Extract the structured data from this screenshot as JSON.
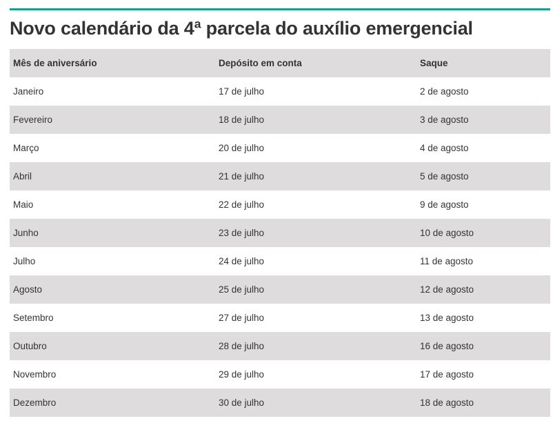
{
  "title": "Novo calendário da 4ª parcela do auxílio emergencial",
  "colors": {
    "accent_rule": "#17a088",
    "row_shade": "#dedcdd",
    "text": "#333333"
  },
  "table": {
    "headers": [
      "Mês de aniversário",
      "Depósito em conta",
      "Saque"
    ],
    "rows": [
      [
        "Janeiro",
        "17 de julho",
        "2 de agosto"
      ],
      [
        "Fevereiro",
        "18 de julho",
        "3 de agosto"
      ],
      [
        "Março",
        "20 de julho",
        "4 de agosto"
      ],
      [
        "Abril",
        "21 de julho",
        "5 de agosto"
      ],
      [
        "Maio",
        "22 de julho",
        "9 de agosto"
      ],
      [
        "Junho",
        "23 de julho",
        "10 de agosto"
      ],
      [
        "Julho",
        "24 de julho",
        "11 de agosto"
      ],
      [
        "Agosto",
        "25 de julho",
        "12 de agosto"
      ],
      [
        "Setembro",
        "27 de julho",
        "13 de agosto"
      ],
      [
        "Outubro",
        "28 de julho",
        "16 de agosto"
      ],
      [
        "Novembro",
        "29 de julho",
        "17 de agosto"
      ],
      [
        "Dezembro",
        "30 de julho",
        "18 de agosto"
      ]
    ]
  }
}
